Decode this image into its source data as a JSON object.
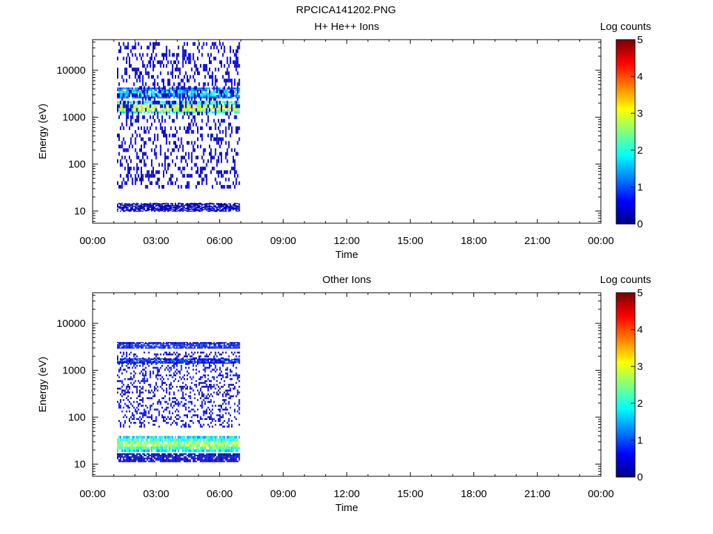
{
  "file_title": "RPCICA141202.PNG",
  "chart_data": [
    {
      "type": "heatmap",
      "title": "H+ He++ Ions",
      "xlabel": "Time",
      "ylabel": "Energy (eV)",
      "x_ticks": [
        "00:00",
        "03:00",
        "06:00",
        "09:00",
        "12:00",
        "15:00",
        "18:00",
        "21:00",
        "00:00"
      ],
      "x_range_hours": [
        0,
        24
      ],
      "y_scale": "log",
      "y_range_ev": [
        5.5,
        45000
      ],
      "y_ticks": [
        {
          "value": 10,
          "label": "10"
        },
        {
          "value": 100,
          "label": "100"
        },
        {
          "value": 1000,
          "label": "1000"
        },
        {
          "value": 10000,
          "label": "10000"
        }
      ],
      "colorbar": {
        "label": "Log counts",
        "range": [
          0,
          5
        ],
        "ticks": [
          "0",
          "1",
          "2",
          "3",
          "4",
          "5"
        ],
        "colormap": "jet"
      },
      "data_time_span_hours": [
        1.15,
        6.95
      ],
      "bands": [
        {
          "energy_ev": [
            1200,
            2200
          ],
          "log_counts": 3.2
        },
        {
          "energy_ev": [
            2500,
            4300
          ],
          "log_counts": 1.8
        },
        {
          "energy_ev": [
            30,
            40000
          ],
          "log_counts": 0.4,
          "sparse": true
        },
        {
          "energy_ev": [
            10,
            15
          ],
          "log_counts": 0.3,
          "sparse": true
        }
      ]
    },
    {
      "type": "heatmap",
      "title": "Other Ions",
      "xlabel": "Time",
      "ylabel": "Energy (eV)",
      "x_ticks": [
        "00:00",
        "03:00",
        "06:00",
        "09:00",
        "12:00",
        "15:00",
        "18:00",
        "21:00",
        "00:00"
      ],
      "x_range_hours": [
        0,
        24
      ],
      "y_scale": "log",
      "y_range_ev": [
        5.5,
        45000
      ],
      "y_ticks": [
        {
          "value": 10,
          "label": "10"
        },
        {
          "value": 100,
          "label": "100"
        },
        {
          "value": 1000,
          "label": "1000"
        },
        {
          "value": 10000,
          "label": "10000"
        }
      ],
      "colorbar": {
        "label": "Log counts",
        "range": [
          0,
          5
        ],
        "ticks": [
          "0",
          "1",
          "2",
          "3",
          "4",
          "5"
        ],
        "colormap": "jet"
      },
      "data_time_span_hours": [
        1.15,
        6.95
      ],
      "bands": [
        {
          "energy_ev": [
            18,
            40
          ],
          "log_counts": 2.8
        },
        {
          "energy_ev": [
            11,
            17
          ],
          "log_counts": 0.4
        },
        {
          "energy_ev": [
            1400,
            1800
          ],
          "log_counts": 1.0
        },
        {
          "energy_ev": [
            2900,
            4000
          ],
          "log_counts": 0.8
        },
        {
          "energy_ev": [
            60,
            2500
          ],
          "log_counts": 0.5,
          "sparse": true
        }
      ]
    }
  ]
}
